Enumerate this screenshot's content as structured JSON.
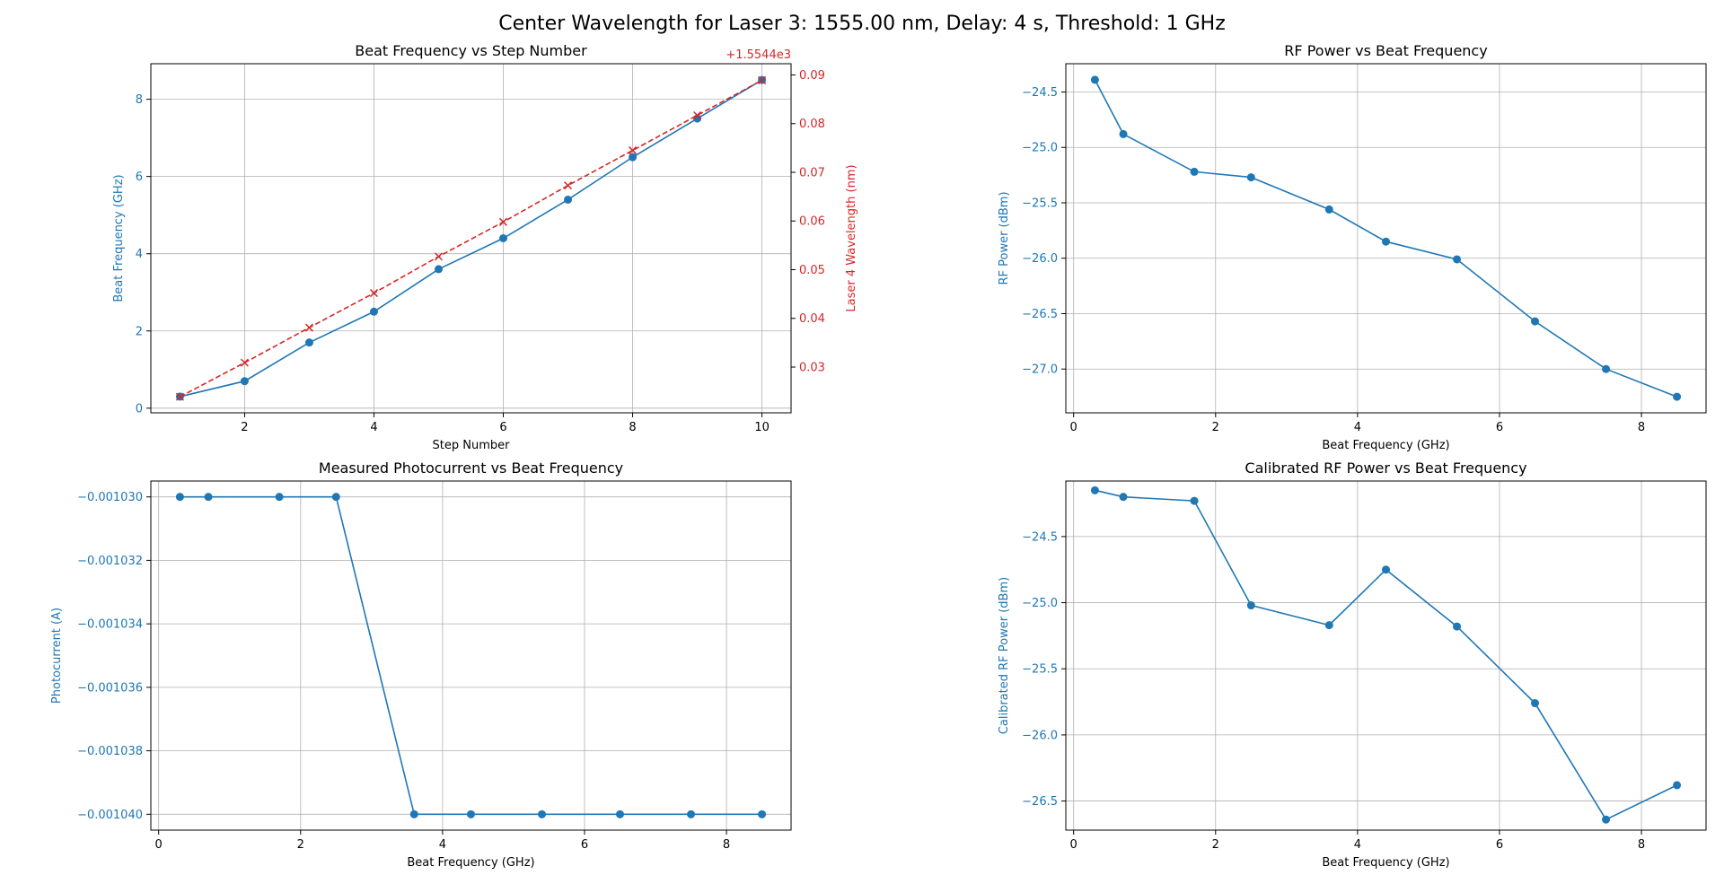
{
  "suptitle": "Center Wavelength for Laser 3: 1555.00 nm, Delay: 4 s, Threshold: 1 GHz",
  "colors": {
    "primary": "#1f77b4",
    "secondary": "#d62728",
    "grid": "#b0b0b0",
    "axis": "#000000"
  },
  "chart_data": [
    {
      "id": "beat-vs-step",
      "type": "line",
      "title": "Beat Frequency vs Step Number",
      "xlabel": "Step Number",
      "ylabel": "Beat Frequency (GHz)",
      "y2label": "Laser 4 Wavelength (nm)",
      "y2_offset_label": "+1.5544e3",
      "grid": true,
      "xlim": [
        0.55,
        10.45
      ],
      "ylim": [
        -0.12,
        8.92
      ],
      "y2lim": [
        0.0206,
        0.0923
      ],
      "xticks": [
        2,
        4,
        6,
        8,
        10
      ],
      "yticks": [
        0,
        2,
        4,
        6,
        8
      ],
      "y2ticks": [
        0.03,
        0.04,
        0.05,
        0.06,
        0.07,
        0.08,
        0.09
      ],
      "y2ticklabels": [
        "0.03",
        "0.04",
        "0.05",
        "0.06",
        "0.07",
        "0.08",
        "0.09"
      ],
      "series": [
        {
          "axis": "left",
          "style": "solid-circle",
          "color": "#1f77b4",
          "x": [
            1,
            2,
            3,
            4,
            5,
            6,
            7,
            8,
            9,
            10
          ],
          "y": [
            0.3,
            0.7,
            1.7,
            2.5,
            3.6,
            4.4,
            5.4,
            6.5,
            7.5,
            8.5
          ]
        },
        {
          "axis": "right",
          "style": "dashed-x",
          "color": "#d62728",
          "x": [
            1,
            2,
            3,
            4,
            5,
            6,
            7,
            8,
            9,
            10
          ],
          "y": [
            0.0239,
            0.0309,
            0.0381,
            0.0452,
            0.0527,
            0.0598,
            0.0673,
            0.0745,
            0.0817,
            0.0889
          ]
        }
      ]
    },
    {
      "id": "rf-vs-beat",
      "type": "line",
      "title": "RF Power vs Beat Frequency",
      "xlabel": "Beat Frequency (GHz)",
      "ylabel": "RF Power (dBm)",
      "grid": true,
      "xlim": [
        -0.11,
        8.91
      ],
      "ylim": [
        -27.395,
        -24.245
      ],
      "xticks": [
        0,
        2,
        4,
        6,
        8
      ],
      "yticks": [
        -27.0,
        -26.5,
        -26.0,
        -25.5,
        -25.0,
        -24.5
      ],
      "yticklabels": [
        "−27.0",
        "−26.5",
        "−26.0",
        "−25.5",
        "−25.0",
        "−24.5"
      ],
      "series": [
        {
          "axis": "left",
          "style": "solid-circle",
          "color": "#1f77b4",
          "x": [
            0.3,
            0.7,
            1.7,
            2.5,
            3.6,
            4.4,
            5.4,
            6.5,
            7.5,
            8.5
          ],
          "y": [
            -24.39,
            -24.88,
            -25.22,
            -25.27,
            -25.56,
            -25.85,
            -26.01,
            -26.57,
            -27.0,
            -27.25
          ]
        }
      ]
    },
    {
      "id": "photocurrent-vs-beat",
      "type": "line",
      "title": "Measured Photocurrent vs Beat Frequency",
      "xlabel": "Beat Frequency (GHz)",
      "ylabel": "Photocurrent (A)",
      "grid": true,
      "xlim": [
        -0.11,
        8.91
      ],
      "ylim": [
        -0.0010405,
        -0.0010295
      ],
      "xticks": [
        0,
        2,
        4,
        6,
        8
      ],
      "yticks": [
        -0.00104,
        -0.001038,
        -0.001036,
        -0.001034,
        -0.001032,
        -0.00103
      ],
      "yticklabels": [
        "−0.001040",
        "−0.001038",
        "−0.001036",
        "−0.001034",
        "−0.001032",
        "−0.001030"
      ],
      "series": [
        {
          "axis": "left",
          "style": "solid-circle",
          "color": "#1f77b4",
          "x": [
            0.3,
            0.7,
            1.7,
            2.5,
            3.6,
            4.4,
            5.4,
            6.5,
            7.5,
            8.5
          ],
          "y": [
            -0.00103,
            -0.00103,
            -0.00103,
            -0.00103,
            -0.00104,
            -0.00104,
            -0.00104,
            -0.00104,
            -0.00104,
            -0.00104
          ]
        }
      ]
    },
    {
      "id": "calrf-vs-beat",
      "type": "line",
      "title": "Calibrated RF Power vs Beat Frequency",
      "xlabel": "Beat Frequency (GHz)",
      "ylabel": "Calibrated RF Power (dBm)",
      "grid": true,
      "xlim": [
        -0.11,
        8.91
      ],
      "ylim": [
        -26.72,
        -24.08
      ],
      "xticks": [
        0,
        2,
        4,
        6,
        8
      ],
      "yticks": [
        -26.5,
        -26.0,
        -25.5,
        -25.0,
        -24.5
      ],
      "yticklabels": [
        "−26.5",
        "−26.0",
        "−25.5",
        "−25.0",
        "−24.5"
      ],
      "series": [
        {
          "axis": "left",
          "style": "solid-circle",
          "color": "#1f77b4",
          "x": [
            0.3,
            0.7,
            1.7,
            2.5,
            3.6,
            4.4,
            5.4,
            6.5,
            7.5,
            8.5
          ],
          "y": [
            -24.15,
            -24.2,
            -24.23,
            -25.02,
            -25.17,
            -24.75,
            -25.18,
            -25.76,
            -26.64,
            -26.38
          ]
        }
      ]
    }
  ]
}
